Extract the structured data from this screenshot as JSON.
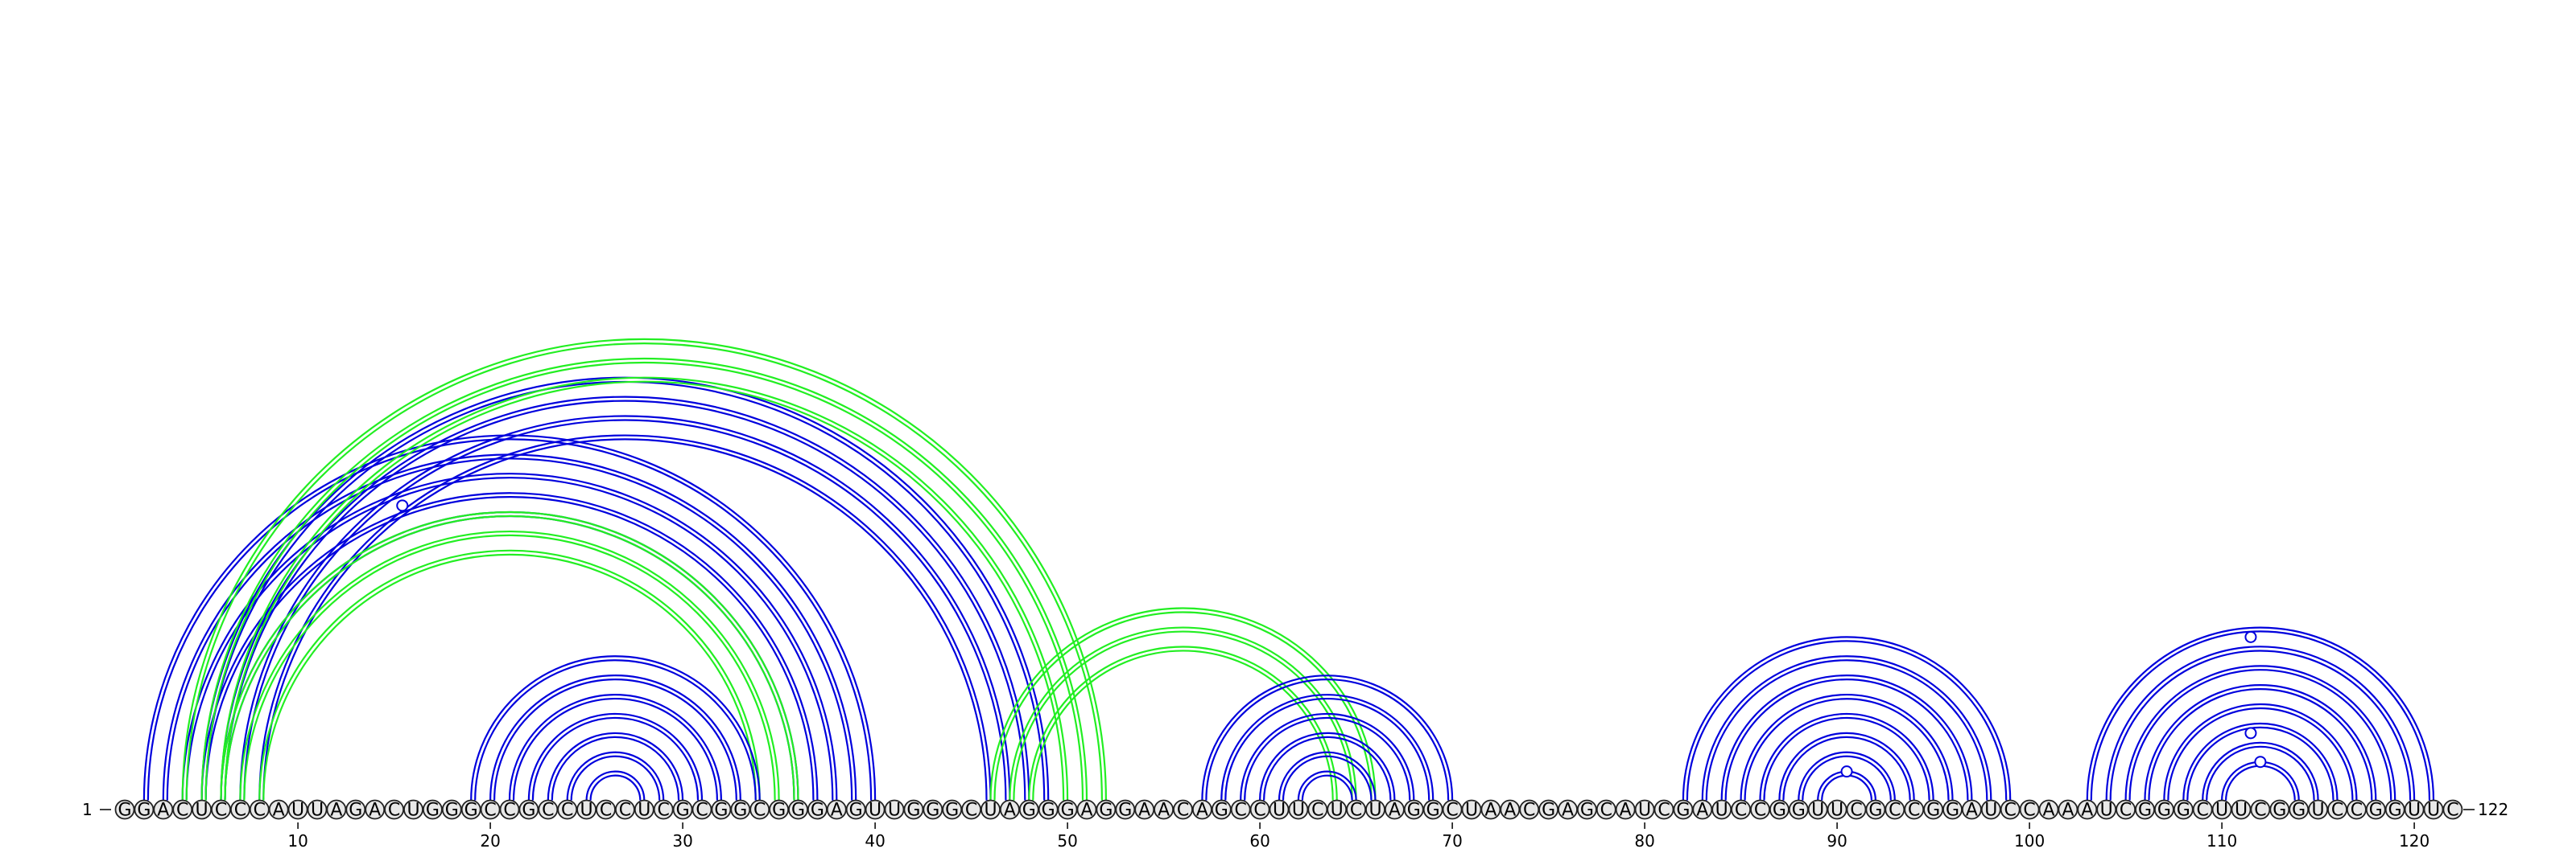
{
  "sequence": "GGACUCCCAUUAGACUGGGCCGCCUCCUCGCGGCGGGAGUUGGGCUAGGGAGGAACAGCCUUCUCUAGGCUAACGAGCAUCGAUCCGGUUCGCCGGAUCCAAAUCGGGCUUCGGUCCGGUUC",
  "start_label": "1",
  "end_label": "122",
  "ticks": [
    10,
    20,
    30,
    40,
    50,
    60,
    70,
    80,
    90,
    100,
    110,
    120
  ],
  "colors": {
    "blue": "#0000dd",
    "green": "#22ee22",
    "nucleotide_fill": "#e8e8e8"
  },
  "pair_groups": [
    {
      "name": "outer-blue-left",
      "color": "blue",
      "pairs": [
        [
          2,
          40
        ],
        [
          3,
          39
        ],
        [
          4,
          38
        ],
        [
          5,
          37
        ],
        [
          6,
          36
        ]
      ]
    },
    {
      "name": "blue-core",
      "color": "blue",
      "pairs": [
        [
          5,
          49
        ],
        [
          6,
          48
        ],
        [
          7,
          47
        ],
        [
          8,
          46
        ]
      ]
    },
    {
      "name": "green-long",
      "color": "green",
      "pairs": [
        [
          4,
          52
        ],
        [
          5,
          51
        ],
        [
          6,
          50
        ]
      ]
    },
    {
      "name": "green-inner",
      "color": "green",
      "pairs": [
        [
          6,
          36
        ],
        [
          7,
          35
        ],
        [
          8,
          34
        ]
      ]
    },
    {
      "name": "blue-hairpin-1",
      "color": "blue",
      "pairs": [
        [
          19,
          34
        ],
        [
          20,
          33
        ],
        [
          21,
          32
        ],
        [
          22,
          31
        ],
        [
          23,
          30
        ],
        [
          24,
          29
        ],
        [
          25,
          28
        ]
      ]
    },
    {
      "name": "green-mid",
      "color": "green",
      "pairs": [
        [
          46,
          66
        ],
        [
          47,
          65
        ],
        [
          48,
          64
        ]
      ]
    },
    {
      "name": "blue-hairpin-2",
      "color": "blue",
      "pairs": [
        [
          57,
          70
        ],
        [
          58,
          69
        ],
        [
          59,
          68
        ],
        [
          60,
          67
        ],
        [
          61,
          66
        ],
        [
          62,
          65
        ]
      ]
    },
    {
      "name": "blue-hairpin-3",
      "color": "blue",
      "pairs": [
        [
          82,
          99
        ],
        [
          83,
          98
        ],
        [
          84,
          97
        ],
        [
          85,
          96
        ],
        [
          86,
          95
        ],
        [
          87,
          94
        ],
        [
          88,
          93
        ],
        [
          89,
          92
        ]
      ]
    },
    {
      "name": "blue-hairpin-4",
      "color": "blue",
      "pairs": [
        [
          103,
          121
        ],
        [
          104,
          120
        ],
        [
          105,
          119
        ],
        [
          106,
          118
        ],
        [
          107,
          117
        ],
        [
          108,
          116
        ],
        [
          109,
          115
        ],
        [
          110,
          114
        ]
      ]
    }
  ],
  "markers": [
    {
      "name": "marker-22",
      "i": 5,
      "j": 38
    },
    {
      "name": "marker-91",
      "i": 89,
      "j": 92
    },
    {
      "name": "marker-112a",
      "i": 103,
      "j": 120
    },
    {
      "name": "marker-112b",
      "i": 108,
      "j": 115
    },
    {
      "name": "marker-112c",
      "i": 110,
      "j": 114
    }
  ]
}
